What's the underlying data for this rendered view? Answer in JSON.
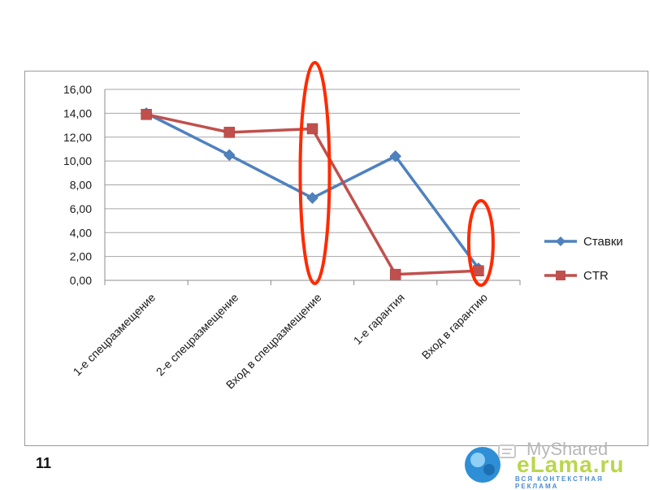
{
  "slide": {
    "number": "11"
  },
  "watermark": {
    "text": "MyShared",
    "logo_icon": "myshared-logo-icon"
  },
  "brand": {
    "name": "eLama.ru",
    "tagline": "ВСЯ КОНТЕКСТНАЯ РЕКЛАМА",
    "colors": {
      "green": "#b9d64a",
      "blue": "#4a8ccf"
    }
  },
  "chart_data": {
    "type": "line",
    "title": "",
    "xlabel": "",
    "ylabel": "",
    "categories": [
      "1-е спецразмещение",
      "2-е спецразмещение",
      "Вход в спецразмещение",
      "1-е гарантия",
      "Вход в гарантию"
    ],
    "ylim": [
      0,
      16
    ],
    "ytick_values": [
      0,
      2,
      4,
      6,
      8,
      10,
      12,
      14,
      16
    ],
    "ytick_labels": [
      "0,00",
      "2,00",
      "4,00",
      "6,00",
      "8,00",
      "10,00",
      "12,00",
      "14,00",
      "16,00"
    ],
    "grid": true,
    "legend_position": "right",
    "series": [
      {
        "name": "Ставки",
        "values": [
          14.0,
          10.5,
          6.9,
          10.4,
          1.0
        ],
        "color": "#4f81bd",
        "marker": "diamond"
      },
      {
        "name": "CTR",
        "values": [
          13.9,
          12.4,
          12.7,
          0.5,
          0.8
        ],
        "color": "#c0504d",
        "marker": "square"
      }
    ],
    "annotations": [
      {
        "type": "ellipse",
        "around_category": "Вход в спецразмещение",
        "color": "#ff2a00"
      },
      {
        "type": "ellipse",
        "around_category": "Вход в гарантию",
        "color": "#ff2a00"
      }
    ]
  }
}
